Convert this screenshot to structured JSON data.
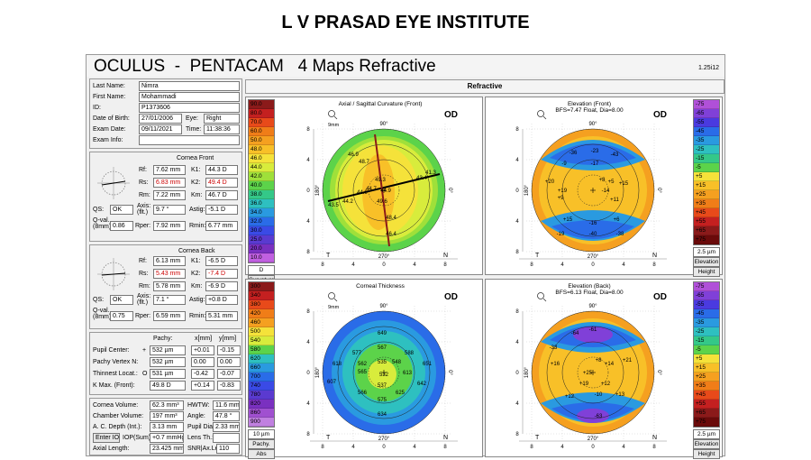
{
  "institute": "L V PRASAD EYE INSTITUTE",
  "title": "OCULUS  -  PENTACAM   4 Maps Refractive",
  "version": "1.25i12",
  "patient": {
    "last_name_label": "Last Name:",
    "last_name": "Nimra",
    "first_name_label": "First Name:",
    "first_name": "Mohammadi",
    "id_label": "ID:",
    "id": "P1373606",
    "dob_label": "Date of Birth:",
    "dob": "27/01/2006",
    "eye_label": "Eye:",
    "eye": "Right",
    "exam_date_label": "Exam Date:",
    "exam_date": "09/11/2021",
    "time_label": "Time:",
    "time": "11:38:36",
    "exam_info_label": "Exam Info:",
    "exam_info": ""
  },
  "cornea_front": {
    "title": "Cornea Front",
    "rf_l": "Rf:",
    "rf": "7.62 mm",
    "k1_l": "K1:",
    "k1": "44.3 D",
    "rs_l": "Rs:",
    "rs": "6.83 mm",
    "k2_l": "K2:",
    "k2": "49.4 D",
    "rm_l": "Rm:",
    "rm": "7.22 mm",
    "km_l": "Km:",
    "km": "46.7 D",
    "qs_l": "QS:",
    "qs": "OK",
    "axis_l": "Axis: (flt.)",
    "axis": "9.7 °",
    "astig_l": "Astig:",
    "astig": "-5.1 D",
    "qval_l": "Q-val. (8mm)",
    "qval": "0.86",
    "rper_l": "Rper:",
    "rper": "7.92 mm",
    "rmin_l": "Rmin:",
    "rmin": "6.77 mm"
  },
  "cornea_back": {
    "title": "Cornea Back",
    "rf_l": "Rf:",
    "rf": "6.13 mm",
    "k1_l": "K1:",
    "k1": "-6.5 D",
    "rs_l": "Rs:",
    "rs": "5.43 mm",
    "k2_l": "K2:",
    "k2": "-7.4 D",
    "rm_l": "Rm:",
    "rm": "5.78 mm",
    "km_l": "Km:",
    "km": "-6.9 D",
    "qs_l": "QS:",
    "qs": "OK",
    "axis_l": "Axis: (flt.)",
    "axis": "7.1 °",
    "astig_l": "Astig:",
    "astig": "+0.8 D",
    "qval_l": "Q-val. (8mm)",
    "qval": "0.75",
    "rper_l": "Rper:",
    "rper": "6.59 mm",
    "rmin_l": "Rmin:",
    "rmin": "5.31 mm"
  },
  "pachy": {
    "h_pachy": "Pachy:",
    "h_x": "x[mm]",
    "h_y": "y[mm]",
    "rows": [
      {
        "label": "Pupil Center:",
        "sym": "+",
        "val": "532 µm",
        "x": "+0.01",
        "y": "-0.15"
      },
      {
        "label": "Pachy Vertex N:",
        "sym": "",
        "val": "532 µm",
        "x": "0.00",
        "y": "0.00"
      },
      {
        "label": "Thinnest Locat.:",
        "sym": "O",
        "val": "531 µm",
        "x": "-0.42",
        "y": "-0.07"
      },
      {
        "label": "K Max. (Front):",
        "sym": "",
        "val": "49.8 D",
        "x": "+0.14",
        "y": "-0.83"
      }
    ]
  },
  "volume": {
    "cv_l": "Cornea Volume:",
    "cv": "62.3 mm³",
    "hwtw_l": "HWTW:",
    "hwtw": "11.6 mm",
    "chv_l": "Chamber Volume:",
    "chv": "197 mm³",
    "angle_l": "Angle:",
    "angle": "47.8 °",
    "acd_l": "A. C. Depth (Int.):",
    "acd": "3.13 mm",
    "pd_l": "Pupil Dia:",
    "pd": "2.33 mm",
    "iop_btn": "Enter IOP",
    "iop_l": "IOP(Sum):",
    "iop": "+0.7 mmHg",
    "lens_l": "Lens Th.:",
    "lens": "",
    "al_l": "Axial Length:",
    "al": "23.425 mm",
    "snr_l": "SNR|Ax.Le",
    "snr": "110"
  },
  "refractive_header": "Refractive",
  "maps": [
    {
      "title": "Axial / Sagittal Curvature (Front)",
      "sub": "",
      "eye": "OD",
      "dia": "9mm",
      "values": [
        "46.9",
        "48.7",
        "49.3",
        "41.3",
        "43.4",
        "44.7",
        "44.2",
        "44.9",
        "43.5",
        "49.6",
        "48.4",
        "46.4",
        "44.9"
      ],
      "unit_btn": "Curvature",
      "unit": "Abs"
    },
    {
      "title": "Elevation (Front)",
      "sub": "BFS=7.47 Float, Dia=8.00",
      "eye": "OD",
      "dia": "",
      "values": [
        "-36",
        "-23",
        "-9",
        "-17",
        "-43",
        "+8",
        "+5",
        "+20",
        "+19",
        "+11",
        "+15",
        "+6",
        "-14",
        "+15",
        "+9",
        "-16",
        "-19",
        "-40",
        "-38"
      ],
      "unit_btn": "Elevation",
      "unit": "Height"
    },
    {
      "title": "Corneal Thickness",
      "sub": "",
      "eye": "OD",
      "dia": "9mm",
      "values": [
        "649",
        "567",
        "577",
        "588",
        "618",
        "548",
        "651",
        "562",
        "535",
        "607",
        "565",
        "532",
        "642",
        "613",
        "566",
        "537",
        "625",
        "575",
        "634"
      ],
      "unit_btn": "Pachy.",
      "unit": "Abs"
    },
    {
      "title": "Elevation (Back)",
      "sub": "BFS=6.13 Float, Dia=8.00",
      "eye": "OD",
      "dia": "",
      "values": [
        "-64",
        "-61",
        "-33",
        "+8",
        "+16",
        "+14",
        "+21",
        "+25",
        "+19",
        "+12",
        "+12",
        "+13",
        "-10",
        "-63"
      ],
      "unit_btn": "Elevation",
      "unit": "Height"
    }
  ],
  "scales": {
    "curvature": {
      "labels": [
        "90.0",
        "80.0",
        "70.0",
        "60.0",
        "50.0",
        "48.0",
        "46.0",
        "44.0",
        "42.0",
        "40.0",
        "38.0",
        "36.0",
        "34.0",
        "32.0",
        "30.0",
        "25.0",
        "20.0",
        "10.0"
      ],
      "colors": [
        "#8b1a1a",
        "#c42020",
        "#e84a1a",
        "#f07d18",
        "#f5a020",
        "#f8c028",
        "#f5e23a",
        "#d8ec3c",
        "#9fe03a",
        "#5cd34a",
        "#34c888",
        "#2ec0c0",
        "#2a9ae0",
        "#2a6ce8",
        "#3a4ae6",
        "#5a3ad0",
        "#7a30c0",
        "#c060e0"
      ],
      "foot": "D"
    },
    "elev_front": {
      "labels": [
        "-75",
        "-65",
        "-55",
        "-45",
        "-35",
        "-25",
        "-15",
        "-5",
        "+5",
        "+15",
        "+25",
        "+35",
        "+45",
        "+55",
        "+65",
        "+75"
      ],
      "colors": [
        "#b050d8",
        "#8040d8",
        "#4a3ae0",
        "#2a6ce8",
        "#2a9ae0",
        "#2ec0c0",
        "#34c888",
        "#5cd34a",
        "#f5e23a",
        "#f8c028",
        "#f5a020",
        "#f07d18",
        "#e84a1a",
        "#c42020",
        "#8b1a1a",
        "#6a0a0a"
      ],
      "foot": "2.5 µm"
    },
    "pachy": {
      "labels": [
        "300",
        "340",
        "380",
        "420",
        "460",
        "500",
        "540",
        "580",
        "620",
        "660",
        "700",
        "740",
        "780",
        "820",
        "860",
        "900"
      ],
      "colors": [
        "#8b1a1a",
        "#c42020",
        "#e84a1a",
        "#f07d18",
        "#f5a020",
        "#f5e23a",
        "#d8ec3c",
        "#5cd34a",
        "#2ec0c0",
        "#2a9ae0",
        "#2a6ce8",
        "#3a4ae6",
        "#5a3ad0",
        "#7a30c0",
        "#a050d0",
        "#c080e0"
      ],
      "foot": "10 µm"
    },
    "elev_back": {
      "labels": [
        "-75",
        "-65",
        "-55",
        "-45",
        "-35",
        "-25",
        "-15",
        "-5",
        "+5",
        "+15",
        "+25",
        "+35",
        "+45",
        "+55",
        "+65",
        "+75"
      ],
      "colors": [
        "#b050d8",
        "#8040d8",
        "#4a3ae0",
        "#2a6ce8",
        "#2a9ae0",
        "#2ec0c0",
        "#34c888",
        "#5cd34a",
        "#f5e23a",
        "#f8c028",
        "#f5a020",
        "#f07d18",
        "#e84a1a",
        "#c42020",
        "#8b1a1a",
        "#6a0a0a"
      ],
      "foot": "2.5 µm"
    }
  },
  "axis_labels": {
    "top": "90°",
    "bottom": "270°",
    "left": "180°",
    "right": "0°",
    "ticks": [
      "8",
      "4",
      "0",
      "4",
      "8"
    ],
    "t": "T",
    "n": "N"
  }
}
